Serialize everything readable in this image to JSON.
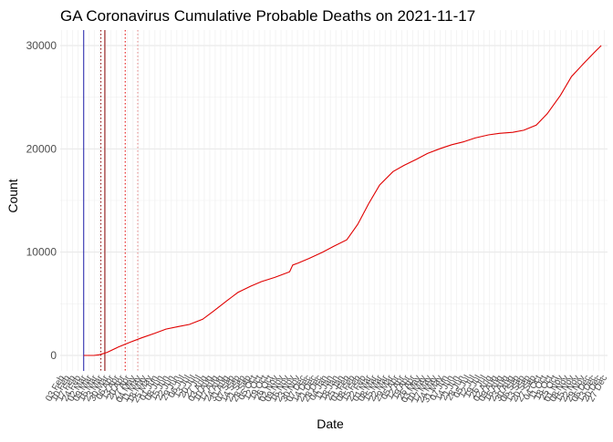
{
  "chart_data": {
    "type": "line",
    "title": "GA Coronavirus Cumulative Probable Deaths on 2021-11-17",
    "xlabel": "Date",
    "ylabel": "Count",
    "ylim": [
      -1500,
      31500
    ],
    "xlim": [
      "2020-02-01",
      "2021-12-31"
    ],
    "y_ticks": [
      0,
      10000,
      20000,
      30000
    ],
    "grid": true,
    "series": [
      {
        "color": "#e00000",
        "points": [
          [
            "2020-03-02",
            0
          ],
          [
            "2020-03-15",
            0
          ],
          [
            "2020-03-22",
            60
          ],
          [
            "2020-04-01",
            300
          ],
          [
            "2020-04-15",
            800
          ],
          [
            "2020-05-01",
            1300
          ],
          [
            "2020-05-15",
            1700
          ],
          [
            "2020-06-01",
            2150
          ],
          [
            "2020-06-15",
            2550
          ],
          [
            "2020-07-01",
            2800
          ],
          [
            "2020-07-15",
            3000
          ],
          [
            "2020-08-01",
            3500
          ],
          [
            "2020-08-15",
            4300
          ],
          [
            "2020-09-01",
            5300
          ],
          [
            "2020-09-15",
            6100
          ],
          [
            "2020-10-01",
            6700
          ],
          [
            "2020-10-15",
            7150
          ],
          [
            "2020-11-01",
            7550
          ],
          [
            "2020-11-15",
            7950
          ],
          [
            "2020-11-20",
            8100
          ],
          [
            "2020-11-24",
            8750
          ],
          [
            "2020-12-01",
            8950
          ],
          [
            "2020-12-15",
            9400
          ],
          [
            "2021-01-01",
            10000
          ],
          [
            "2021-01-15",
            10550
          ],
          [
            "2021-02-01",
            11200
          ],
          [
            "2021-02-15",
            12700
          ],
          [
            "2021-03-01",
            14700
          ],
          [
            "2021-03-15",
            16500
          ],
          [
            "2021-04-01",
            17800
          ],
          [
            "2021-04-15",
            18400
          ],
          [
            "2021-05-01",
            19000
          ],
          [
            "2021-05-15",
            19550
          ],
          [
            "2021-06-01",
            20050
          ],
          [
            "2021-06-15",
            20400
          ],
          [
            "2021-07-01",
            20700
          ],
          [
            "2021-07-15",
            21050
          ],
          [
            "2021-08-01",
            21350
          ],
          [
            "2021-08-15",
            21500
          ],
          [
            "2021-09-01",
            21600
          ],
          [
            "2021-09-15",
            21800
          ],
          [
            "2021-10-01",
            22300
          ],
          [
            "2021-10-15",
            23400
          ],
          [
            "2021-11-01",
            25200
          ],
          [
            "2021-11-15",
            27000
          ],
          [
            "2021-12-01",
            28300
          ],
          [
            "2021-12-15",
            29400
          ],
          [
            "2021-12-23",
            30000
          ]
        ]
      }
    ],
    "vertical_lines": [
      {
        "date": "2020-03-02",
        "color": "#1a1aa6",
        "style": "solid"
      },
      {
        "date": "2020-03-29",
        "color": "#8b0000",
        "style": "solid"
      },
      {
        "date": "2020-03-24",
        "color": "#8b0000",
        "style": "dotted"
      },
      {
        "date": "2020-04-24",
        "color": "#e00000",
        "style": "dotted"
      },
      {
        "date": "2020-05-10",
        "color": "#e88888",
        "style": "dotted"
      }
    ]
  }
}
